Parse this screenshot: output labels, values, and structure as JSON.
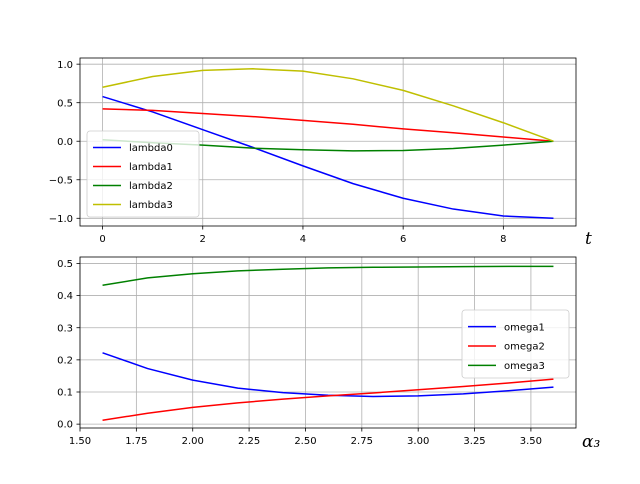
{
  "chart_data": [
    {
      "type": "line",
      "title": "",
      "xlabel": "t",
      "ylabel": "",
      "xlim": [
        -0.45,
        9.45
      ],
      "ylim": [
        -1.1,
        1.08
      ],
      "xticks": [
        0,
        2,
        4,
        6,
        8
      ],
      "xtick_labels": [
        "0",
        "2",
        "4",
        "6",
        "8"
      ],
      "yticks": [
        -1.0,
        -0.5,
        0.0,
        0.5,
        1.0
      ],
      "ytick_labels": [
        "−1.0",
        "−0.5",
        "0.0",
        "0.5",
        "1.0"
      ],
      "grid": true,
      "legend_position": "lower-left",
      "series": [
        {
          "name": "lambda0",
          "color": "#0000ff",
          "x": [
            0,
            1,
            2,
            3,
            4,
            5,
            6,
            7,
            8,
            9
          ],
          "y": [
            0.58,
            0.38,
            0.15,
            -0.08,
            -0.32,
            -0.55,
            -0.74,
            -0.88,
            -0.97,
            -1.0
          ]
        },
        {
          "name": "lambda1",
          "color": "#ff0000",
          "x": [
            0,
            1,
            2,
            3,
            4,
            5,
            6,
            7,
            8,
            9
          ],
          "y": [
            0.42,
            0.4,
            0.36,
            0.32,
            0.27,
            0.22,
            0.16,
            0.11,
            0.055,
            0.0
          ]
        },
        {
          "name": "lambda2",
          "color": "#008000",
          "x": [
            0,
            1,
            2,
            3,
            4,
            5,
            6,
            7,
            8,
            9
          ],
          "y": [
            0.02,
            -0.02,
            -0.05,
            -0.09,
            -0.11,
            -0.125,
            -0.12,
            -0.095,
            -0.05,
            0.0
          ]
        },
        {
          "name": "lambda3",
          "color": "#bfbf00",
          "x": [
            0,
            1,
            2,
            3,
            4,
            5,
            6,
            7,
            8,
            9
          ],
          "y": [
            0.7,
            0.84,
            0.92,
            0.94,
            0.91,
            0.81,
            0.66,
            0.46,
            0.24,
            0.0
          ]
        }
      ]
    },
    {
      "type": "line",
      "title": "",
      "xlabel": "α₃",
      "ylabel": "",
      "xlim": [
        1.5,
        3.7
      ],
      "ylim": [
        -0.012,
        0.52
      ],
      "xticks": [
        1.5,
        1.75,
        2.0,
        2.25,
        2.5,
        2.75,
        3.0,
        3.25,
        3.5
      ],
      "xtick_labels": [
        "1.50",
        "1.75",
        "2.00",
        "2.25",
        "2.50",
        "2.75",
        "3.00",
        "3.25",
        "3.50"
      ],
      "yticks": [
        0.0,
        0.1,
        0.2,
        0.3,
        0.4,
        0.5
      ],
      "ytick_labels": [
        "0.0",
        "0.1",
        "0.2",
        "0.3",
        "0.4",
        "0.5"
      ],
      "grid": true,
      "legend_position": "center-right",
      "series": [
        {
          "name": "omega1",
          "color": "#0000ff",
          "x": [
            1.6,
            1.8,
            2.0,
            2.2,
            2.4,
            2.6,
            2.8,
            3.0,
            3.2,
            3.4,
            3.6
          ],
          "y": [
            0.222,
            0.173,
            0.137,
            0.112,
            0.098,
            0.09,
            0.086,
            0.088,
            0.094,
            0.104,
            0.115
          ]
        },
        {
          "name": "omega2",
          "color": "#ff0000",
          "x": [
            1.6,
            1.8,
            2.0,
            2.2,
            2.4,
            2.6,
            2.8,
            3.0,
            3.2,
            3.4,
            3.6
          ],
          "y": [
            0.012,
            0.034,
            0.052,
            0.066,
            0.078,
            0.088,
            0.097,
            0.107,
            0.117,
            0.128,
            0.14
          ]
        },
        {
          "name": "omega3",
          "color": "#008000",
          "x": [
            1.6,
            1.8,
            2.0,
            2.2,
            2.4,
            2.6,
            2.8,
            3.0,
            3.2,
            3.4,
            3.6
          ],
          "y": [
            0.432,
            0.455,
            0.468,
            0.477,
            0.482,
            0.486,
            0.488,
            0.489,
            0.49,
            0.491,
            0.491
          ]
        }
      ]
    }
  ]
}
